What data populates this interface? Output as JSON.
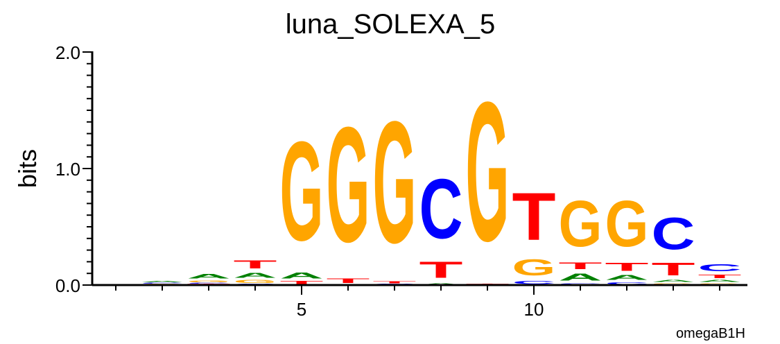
{
  "chart_data": {
    "type": "sequence-logo",
    "title": "luna_SOLEXA_5",
    "ylabel": "bits",
    "xlabel": "",
    "ylim": [
      0,
      2.0
    ],
    "yticks": [
      "0.0",
      "1.0",
      "2.0"
    ],
    "xticks": [
      "5",
      "10"
    ],
    "footer": "omegaB1H",
    "colors": {
      "A": "#008000",
      "C": "#0000ff",
      "G": "#ffa500",
      "T": "#ff0000"
    },
    "positions": [
      {
        "pos": 1,
        "stack": []
      },
      {
        "pos": 2,
        "stack": [
          [
            "G",
            0.01
          ],
          [
            "C",
            0.01
          ],
          [
            "A",
            0.015
          ]
        ]
      },
      {
        "pos": 3,
        "stack": [
          [
            "T",
            0.01
          ],
          [
            "C",
            0.01
          ],
          [
            "G",
            0.025
          ],
          [
            "A",
            0.06
          ]
        ]
      },
      {
        "pos": 4,
        "stack": [
          [
            "C",
            0.01
          ],
          [
            "G",
            0.04
          ],
          [
            "A",
            0.07
          ],
          [
            "T",
            0.11
          ]
        ]
      },
      {
        "pos": 5,
        "stack": [
          [
            "T",
            0.04
          ],
          [
            "A",
            0.08
          ],
          [
            "G",
            1.36
          ]
        ]
      },
      {
        "pos": 6,
        "stack": [
          [
            "C",
            0.005
          ],
          [
            "T",
            0.06
          ],
          [
            "G",
            1.58
          ]
        ]
      },
      {
        "pos": 7,
        "stack": [
          [
            "C",
            0.01
          ],
          [
            "T",
            0.03
          ],
          [
            "G",
            1.67
          ]
        ]
      },
      {
        "pos": 8,
        "stack": [
          [
            "A",
            0.02
          ],
          [
            "T",
            0.22
          ],
          [
            "C",
            0.82
          ]
        ]
      },
      {
        "pos": 9,
        "stack": [
          [
            "T",
            0.01
          ],
          [
            "G",
            1.91
          ]
        ]
      },
      {
        "pos": 10,
        "stack": [
          [
            "C",
            0.04
          ],
          [
            "G",
            0.22
          ],
          [
            "T",
            0.65
          ]
        ]
      },
      {
        "pos": 11,
        "stack": [
          [
            "C",
            0.02
          ],
          [
            "A",
            0.1
          ],
          [
            "T",
            0.09
          ],
          [
            "G",
            0.63
          ]
        ]
      },
      {
        "pos": 12,
        "stack": [
          [
            "C",
            0.03
          ],
          [
            "A",
            0.07
          ],
          [
            "T",
            0.11
          ],
          [
            "G",
            0.63
          ]
        ]
      },
      {
        "pos": 13,
        "stack": [
          [
            "G",
            0.02
          ],
          [
            "A",
            0.03
          ],
          [
            "T",
            0.17
          ],
          [
            "C",
            0.44
          ]
        ]
      },
      {
        "pos": 14,
        "stack": [
          [
            "G",
            0.02
          ],
          [
            "A",
            0.03
          ],
          [
            "T",
            0.05
          ],
          [
            "C",
            0.1
          ]
        ]
      }
    ]
  }
}
